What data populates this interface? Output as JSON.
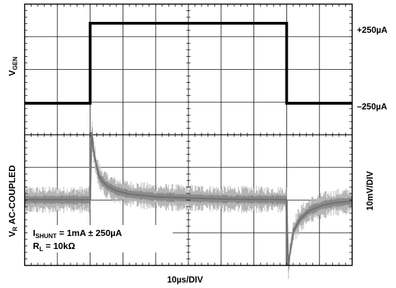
{
  "chart_data": {
    "type": "line",
    "title": "",
    "grid": true,
    "xlabel": "10µs/DIV",
    "x_range": [
      0,
      100
    ],
    "x_unit": "µs",
    "panels": [
      {
        "name": "VGEN",
        "ylabel_main": "V",
        "ylabel_sub": "GEN",
        "right_labels": {
          "high": "+250µA",
          "low": "–250µA"
        },
        "series": [
          {
            "x": [
              0,
              20,
              20,
              80,
              80,
              100
            ],
            "y": [
              -250,
              -250,
              250,
              250,
              -250,
              -250
            ]
          }
        ]
      },
      {
        "name": "VR AC-COUPLED",
        "ylabel_main": "V",
        "ylabel_sub": "R",
        "ylabel_rest": " AC-COUPLED",
        "right_label": "10mV/DIV",
        "y_unit": "mV",
        "series": [
          {
            "x": [
              0,
              20,
              20.5,
              21,
              22,
              23,
              25,
              28,
              32,
              40,
              60,
              80,
              80.5,
              81,
              82,
              84,
              87,
              91,
              95,
              100
            ],
            "y": [
              0,
              0,
              19,
              14,
              9,
              6,
              4,
              2.5,
              1.6,
              0.8,
              0.2,
              0,
              -20,
              -15,
              -9,
              -5.5,
              -3,
              -1.5,
              -0.8,
              -0.4
            ]
          }
        ]
      }
    ],
    "annotations": [
      {
        "main": "I",
        "sub": "SHUNT",
        "rest": " = 1mA ± 250µA"
      },
      {
        "main": "R",
        "sub": "L",
        "rest": " = 10kΩ"
      }
    ]
  }
}
